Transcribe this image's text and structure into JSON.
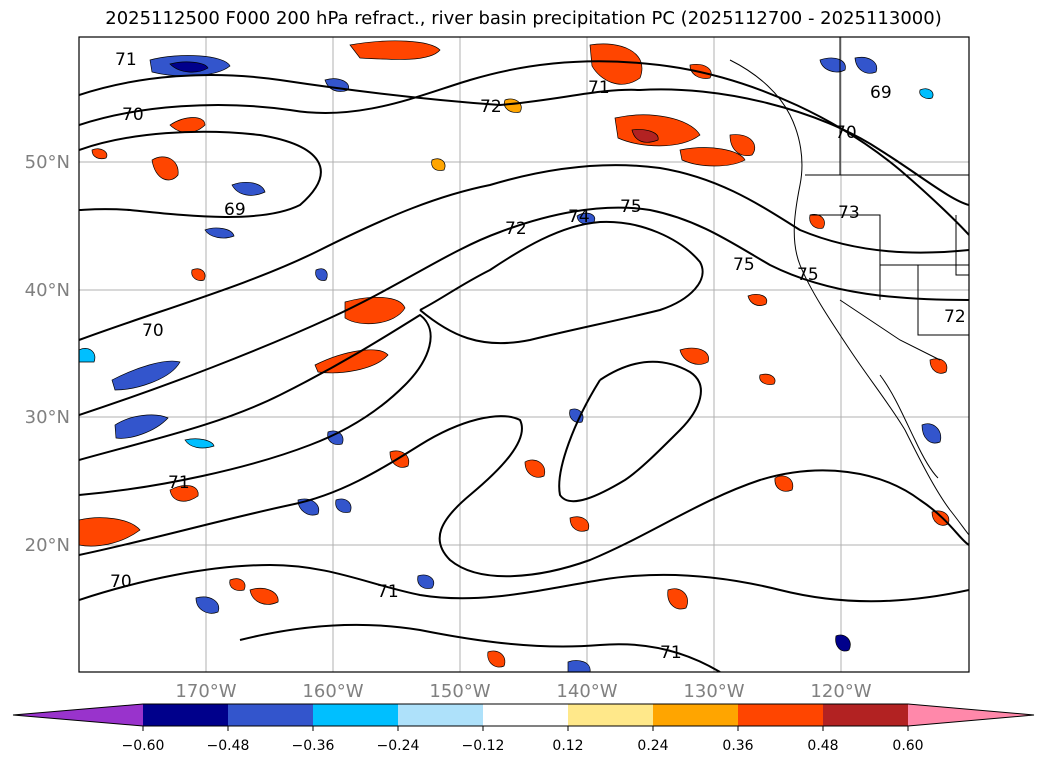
{
  "title": "2025112500 F000 200 hPa refract., river basin precipitation PC (2025112700 - 2025113000)",
  "latitude_labels": [
    "50°N",
    "40°N",
    "30°N",
    "20°N"
  ],
  "longitude_labels": [
    "170°W",
    "160°W",
    "150°W",
    "140°W",
    "130°W",
    "120°W"
  ],
  "contour_labels": [
    "71",
    "70",
    "72",
    "71",
    "69",
    "70",
    "69",
    "72",
    "74",
    "75",
    "73",
    "75",
    "75",
    "70",
    "71",
    "70",
    "71",
    "71",
    "72"
  ],
  "colorbar": {
    "colors": [
      "#9933cc",
      "#00008b",
      "#3355cc",
      "#00bfff",
      "#aee1fa",
      "#ffffff",
      "#ffe88a",
      "#ffa500",
      "#ff4500",
      "#b22222",
      "#ff88aa"
    ],
    "tick_labels": [
      "−0.60",
      "−0.48",
      "−0.36",
      "−0.24",
      "−0.12",
      "0.12",
      "0.24",
      "0.36",
      "0.48",
      "0.60"
    ]
  }
}
